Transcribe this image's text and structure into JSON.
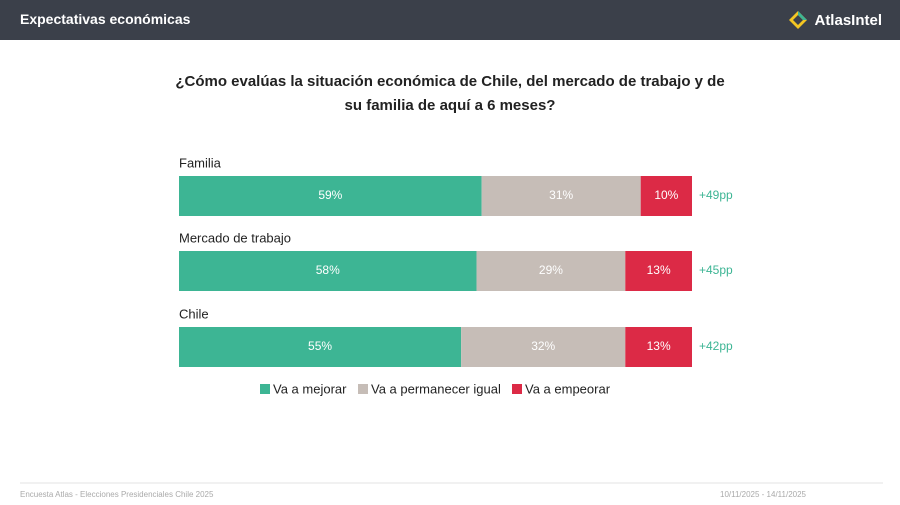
{
  "header": {
    "title": "Expectativas económicas",
    "brand": "AtlasIntel"
  },
  "chart_data": {
    "type": "stacked-bar-horizontal",
    "title": "¿Cómo evalúas la situación económica de Chile, del mercado de trabajo y de su familia de aquí a 6 meses?",
    "categories": [
      "Familia",
      "Mercado de trabajo",
      "Chile"
    ],
    "series": [
      {
        "name": "Va a mejorar",
        "color": "#3db594",
        "values": [
          59,
          58,
          55
        ],
        "value_labels": [
          "59%",
          "58%",
          "55%"
        ]
      },
      {
        "name": "Va a permanecer igual",
        "color": "#c6bdb7",
        "values": [
          31,
          29,
          32
        ],
        "value_labels": [
          "31%",
          "29%",
          "32%"
        ]
      },
      {
        "name": "Va a empeorar",
        "color": "#dc2a46",
        "values": [
          10,
          13,
          13
        ],
        "value_labels": [
          "10%",
          "13%",
          "13%"
        ]
      }
    ],
    "xlim": [
      0,
      100
    ],
    "net_values": [
      49,
      45,
      42
    ],
    "net_labels": [
      "+49pp",
      "+45pp",
      "+42pp"
    ],
    "net_color": "#3db594"
  },
  "footer": {
    "source": "Encuesta Atlas - Elecciones Presidenciales Chile 2025",
    "dates": "10/11/2025 - 14/11/2025"
  }
}
